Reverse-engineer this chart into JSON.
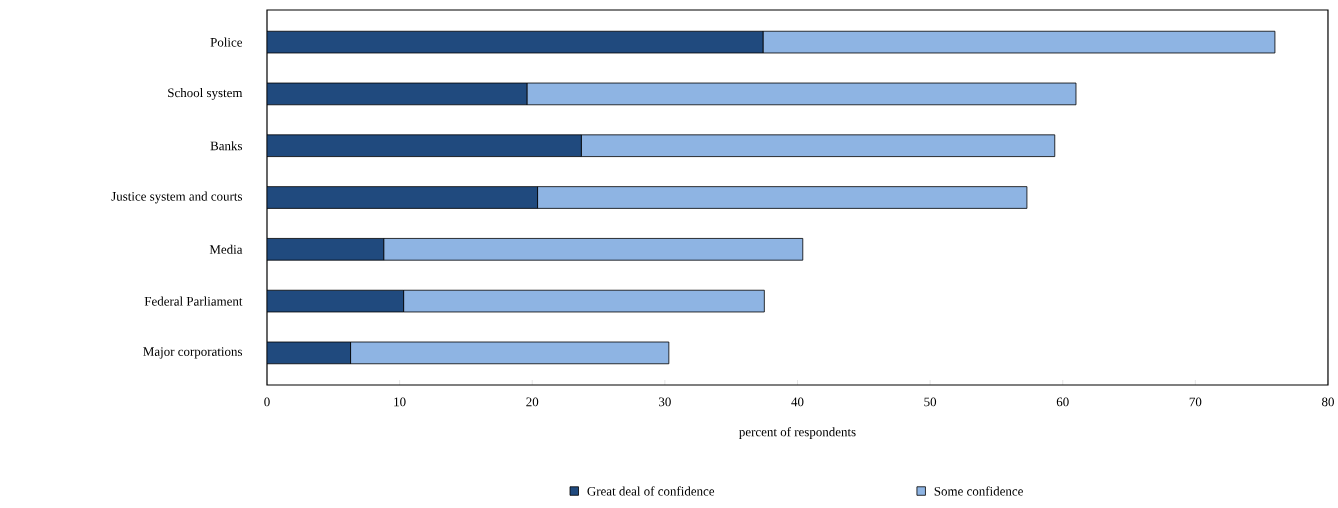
{
  "chart_data": {
    "type": "bar",
    "orientation": "horizontal",
    "stacked": true,
    "categories": [
      "Police",
      "School system",
      "Banks",
      "Justice system and courts",
      "Media",
      "Federal Parliament",
      "Major corporations"
    ],
    "series": [
      {
        "name": "Great deal of confidence",
        "color": "#204a7e",
        "values": [
          37.4,
          19.6,
          23.7,
          20.4,
          8.8,
          10.3,
          6.3
        ]
      },
      {
        "name": "Some confidence",
        "color": "#8eb4e3",
        "values": [
          38.6,
          41.4,
          35.7,
          36.9,
          31.6,
          27.2,
          24.0
        ]
      }
    ],
    "xlim": [
      0,
      80
    ],
    "xticks": [
      0,
      10,
      20,
      30,
      40,
      50,
      60,
      70,
      80
    ],
    "xlabel": "percent of respondents",
    "legend": "bottom"
  }
}
